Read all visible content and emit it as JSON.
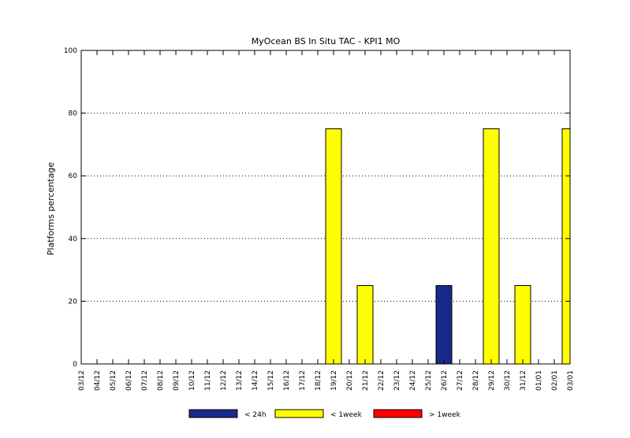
{
  "chart_data": {
    "type": "bar",
    "title": "MyOcean  BS In Situ TAC - KPI1  MO",
    "xlabel": "",
    "ylabel": "Platforms percentage",
    "ylim": [
      0,
      100
    ],
    "yticks": [
      0,
      20,
      40,
      60,
      80,
      100
    ],
    "grid": "horizontal dotted",
    "categories": [
      "03/12",
      "04/12",
      "05/12",
      "06/12",
      "07/12",
      "08/12",
      "09/12",
      "10/12",
      "11/12",
      "12/12",
      "13/12",
      "14/12",
      "15/12",
      "16/12",
      "17/12",
      "18/12",
      "19/12",
      "20/12",
      "21/12",
      "22/12",
      "23/12",
      "24/12",
      "25/12",
      "26/12",
      "27/12",
      "28/12",
      "29/12",
      "30/12",
      "31/12",
      "01/01",
      "02/01",
      "03/01"
    ],
    "series": [
      {
        "name": "< 24h",
        "color": "#1a2a8a",
        "values": [
          0,
          0,
          0,
          0,
          0,
          0,
          0,
          0,
          0,
          0,
          0,
          0,
          0,
          0,
          0,
          0,
          0,
          0,
          0,
          0,
          0,
          0,
          0,
          25,
          0,
          0,
          0,
          0,
          0,
          0,
          0,
          0
        ]
      },
      {
        "name": "< 1week",
        "color": "#ffff00",
        "values": [
          0,
          0,
          0,
          0,
          0,
          0,
          0,
          0,
          0,
          0,
          0,
          0,
          0,
          0,
          0,
          0,
          75,
          0,
          25,
          0,
          0,
          0,
          0,
          0,
          0,
          0,
          75,
          0,
          25,
          0,
          0,
          75
        ]
      },
      {
        "name": "> 1week",
        "color": "#ff0000",
        "values": [
          0,
          0,
          0,
          0,
          0,
          0,
          0,
          0,
          0,
          0,
          0,
          0,
          0,
          0,
          0,
          0,
          0,
          0,
          0,
          0,
          0,
          0,
          0,
          0,
          0,
          0,
          0,
          0,
          0,
          0,
          0,
          0
        ]
      }
    ],
    "legend_position": "bottom"
  }
}
